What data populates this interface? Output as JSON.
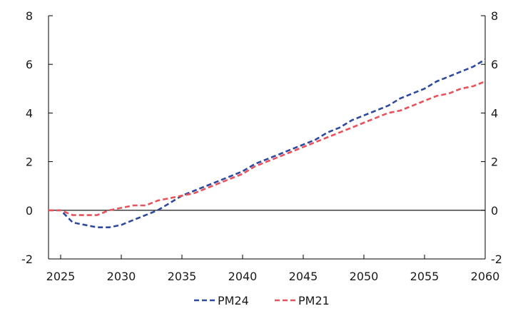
{
  "chart_data": {
    "type": "line",
    "title": "",
    "xlabel": "",
    "ylabel": "",
    "xlim": [
      2024,
      2060
    ],
    "ylim": [
      -2,
      8
    ],
    "x_ticks": [
      2025,
      2030,
      2035,
      2040,
      2045,
      2050,
      2055,
      2060
    ],
    "y_ticks": [
      -2,
      0,
      2,
      4,
      6,
      8
    ],
    "y_ticks_right": [
      -2,
      0,
      2,
      4,
      6,
      8
    ],
    "x_tick_labels": [
      "2025",
      "2030",
      "2035",
      "2040",
      "2045",
      "2050",
      "2055",
      "2060"
    ],
    "y_tick_labels": [
      "-2",
      "0",
      "2",
      "4",
      "6",
      "8"
    ],
    "grid": false,
    "zero_line": true,
    "legend_position": "bottom-center",
    "series": [
      {
        "name": "PM24",
        "color": "#2e4a9e",
        "style": "dashed",
        "x": [
          2024,
          2025,
          2026,
          2027,
          2028,
          2029,
          2030,
          2031,
          2032,
          2033,
          2034,
          2035,
          2036,
          2037,
          2038,
          2039,
          2040,
          2041,
          2042,
          2043,
          2044,
          2045,
          2046,
          2047,
          2048,
          2049,
          2050,
          2051,
          2052,
          2053,
          2054,
          2055,
          2056,
          2057,
          2058,
          2059,
          2060
        ],
        "values": [
          0.0,
          0.0,
          -0.5,
          -0.6,
          -0.7,
          -0.7,
          -0.6,
          -0.4,
          -0.2,
          0.0,
          0.3,
          0.6,
          0.8,
          1.0,
          1.2,
          1.4,
          1.6,
          1.9,
          2.1,
          2.3,
          2.5,
          2.7,
          2.9,
          3.2,
          3.4,
          3.7,
          3.9,
          4.1,
          4.3,
          4.6,
          4.8,
          5.0,
          5.3,
          5.5,
          5.7,
          5.9,
          6.2
        ]
      },
      {
        "name": "PM21",
        "color": "#e8525a",
        "style": "dashed",
        "x": [
          2024,
          2025,
          2026,
          2027,
          2028,
          2029,
          2030,
          2031,
          2032,
          2033,
          2034,
          2035,
          2036,
          2037,
          2038,
          2039,
          2040,
          2041,
          2042,
          2043,
          2044,
          2045,
          2046,
          2047,
          2048,
          2049,
          2050,
          2051,
          2052,
          2053,
          2054,
          2055,
          2056,
          2057,
          2058,
          2059,
          2060
        ],
        "values": [
          0.0,
          0.0,
          -0.2,
          -0.2,
          -0.2,
          0.0,
          0.1,
          0.2,
          0.2,
          0.4,
          0.5,
          0.6,
          0.7,
          0.9,
          1.1,
          1.3,
          1.5,
          1.8,
          2.0,
          2.2,
          2.4,
          2.6,
          2.8,
          3.0,
          3.2,
          3.4,
          3.6,
          3.8,
          4.0,
          4.1,
          4.3,
          4.5,
          4.7,
          4.8,
          5.0,
          5.1,
          5.3
        ]
      }
    ]
  }
}
